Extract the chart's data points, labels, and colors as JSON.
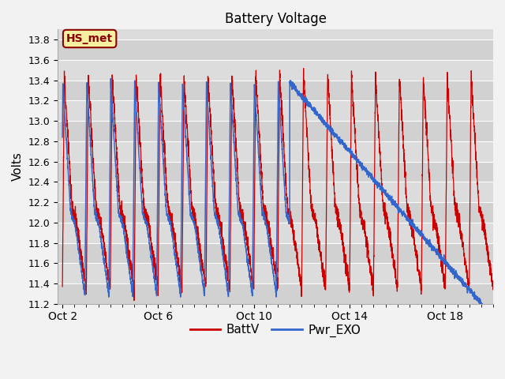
{
  "title": "Battery Voltage",
  "ylabel": "Volts",
  "ylim": [
    11.2,
    13.9
  ],
  "fig_bg": "#f2f2f2",
  "plot_bg": "#dcdcdc",
  "grid_color": "white",
  "line_batt_color": "#cc0000",
  "line_pwr_color": "#3366cc",
  "legend_labels": [
    "BattV",
    "Pwr_EXO"
  ],
  "annotation_text": "HS_met",
  "annotation_bg": "#f5f0a0",
  "annotation_border": "#8b0000",
  "x_tick_labels": [
    "Oct 2",
    "Oct 6",
    "Oct 10",
    "Oct 14",
    "Oct 18"
  ],
  "x_tick_positions": [
    0,
    4,
    8,
    12,
    16
  ],
  "yticks": [
    11.2,
    11.4,
    11.6,
    11.8,
    12.0,
    12.2,
    12.4,
    12.6,
    12.8,
    13.0,
    13.2,
    13.4,
    13.6,
    13.8
  ],
  "total_days": 18,
  "cycle_period": 1.0,
  "batt_max": 13.45,
  "batt_min": 11.35,
  "pwr_max": 13.38,
  "pwr_min": 11.28,
  "pwr_transition_day": 9.5,
  "pwr_end_val": 11.2
}
